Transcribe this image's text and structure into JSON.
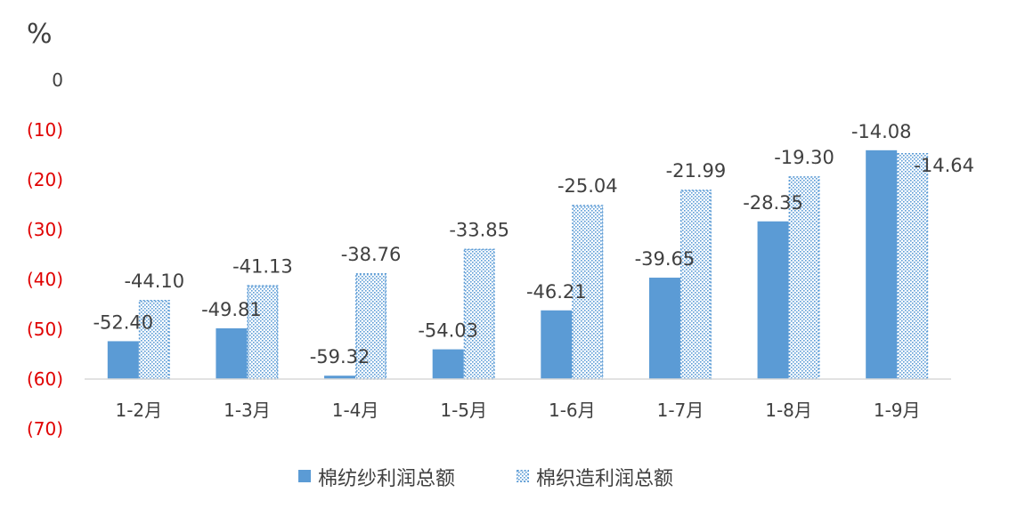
{
  "chart_data": {
    "type": "bar",
    "ylabel": "%",
    "ylim": [
      -70,
      0
    ],
    "y_ticks": [
      "0",
      "(10)",
      "(20)",
      "(30)",
      "(40)",
      "(50)",
      "(60)",
      "(70)"
    ],
    "categories": [
      "1-2月",
      "1-3月",
      "1-4月",
      "1-5月",
      "1-6月",
      "1-7月",
      "1-8月",
      "1-9月"
    ],
    "series": [
      {
        "name": "棉纺纱利润总额",
        "values": [
          -52.4,
          -49.81,
          -59.32,
          -54.03,
          -46.21,
          -39.65,
          -28.35,
          -14.08
        ],
        "labels": [
          "-52.40",
          "-49.81",
          "-59.32",
          "-54.03",
          "-46.21",
          "-39.65",
          "-28.35",
          "-14.08"
        ],
        "color": "#5b9bd5",
        "fill": "solid"
      },
      {
        "name": "棉织造利润总额",
        "values": [
          -44.1,
          -41.13,
          -38.76,
          -33.85,
          -25.04,
          -21.99,
          -19.3,
          -14.64
        ],
        "labels": [
          "-44.10",
          "-41.13",
          "-38.76",
          "-33.85",
          "-25.04",
          "-21.99",
          "-19.30",
          "-14.64"
        ],
        "color": "#5b9bd5",
        "fill": "dotted"
      }
    ],
    "legend_position": "bottom",
    "grid": false
  }
}
